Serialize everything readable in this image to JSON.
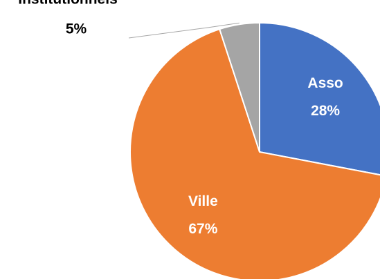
{
  "chart_data": {
    "type": "pie",
    "categories": [
      "Asso",
      "Ville",
      "Institutionnels"
    ],
    "values": [
      28,
      67,
      5
    ],
    "value_labels": [
      "28%",
      "67%",
      "5%"
    ],
    "colors": [
      "#4472c4",
      "#ed7d31",
      "#a5a5a5"
    ]
  }
}
